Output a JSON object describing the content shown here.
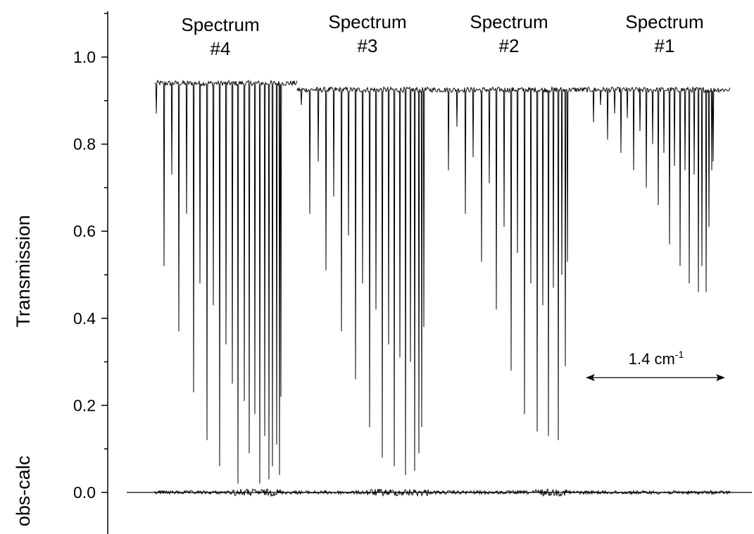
{
  "chart_data": {
    "type": "line",
    "y_axis": {
      "label": "Transmission",
      "lower_label": "obs-calc",
      "range": [
        -0.08,
        1.1
      ],
      "major_ticks": [
        0.0,
        0.2,
        0.4,
        0.6,
        0.8,
        1.0
      ],
      "tick_labels": [
        "0.0",
        "0.2",
        "0.4",
        "0.6",
        "0.8",
        "1.0"
      ],
      "minor_ticks": [
        -0.1,
        0.1,
        0.3,
        0.5,
        0.7,
        0.9,
        1.1
      ]
    },
    "x_axis": {
      "shown": false
    },
    "grid": false,
    "baseline": 0.0,
    "series": [
      {
        "spectrum_label": [
          "Spectrum",
          "#4"
        ],
        "continuum": 0.94,
        "absorption_minima": [
          0.87,
          0.52,
          0.73,
          0.37,
          0.64,
          0.23,
          0.48,
          0.12,
          0.43,
          0.06,
          0.34,
          0.25,
          0.02,
          0.21,
          0.09,
          0.18,
          0.02,
          0.13,
          0.03,
          0.06,
          0.11,
          0.04,
          0.22
        ]
      },
      {
        "spectrum_label": [
          "Spectrum",
          "#3"
        ],
        "continuum": 0.925,
        "absorption_minima": [
          0.89,
          0.64,
          0.76,
          0.51,
          0.68,
          0.37,
          0.59,
          0.26,
          0.48,
          0.15,
          0.42,
          0.08,
          0.34,
          0.06,
          0.31,
          0.04,
          0.3,
          0.05,
          0.09,
          0.15,
          0.38
        ]
      },
      {
        "spectrum_label": [
          "Spectrum",
          "#2"
        ],
        "continuum": 0.925,
        "absorption_minima": [
          0.74,
          0.84,
          0.64,
          0.77,
          0.53,
          0.71,
          0.42,
          0.61,
          0.28,
          0.55,
          0.18,
          0.48,
          0.14,
          0.43,
          0.13,
          0.47,
          0.12,
          0.5,
          0.29,
          0.53
        ]
      },
      {
        "spectrum_label": [
          "Spectrum",
          "#1"
        ],
        "continuum": 0.925,
        "absorption_minima": [
          0.85,
          0.89,
          0.81,
          0.87,
          0.78,
          0.86,
          0.74,
          0.83,
          0.7,
          0.8,
          0.66,
          0.78,
          0.57,
          0.75,
          0.52,
          0.74,
          0.48,
          0.73,
          0.46,
          0.52,
          0.46,
          0.61,
          0.74,
          0.76
        ]
      }
    ],
    "annotations": [
      {
        "text": "1.4 cm",
        "superscript": "-1",
        "type": "double-arrow",
        "y": 0.26
      }
    ]
  }
}
